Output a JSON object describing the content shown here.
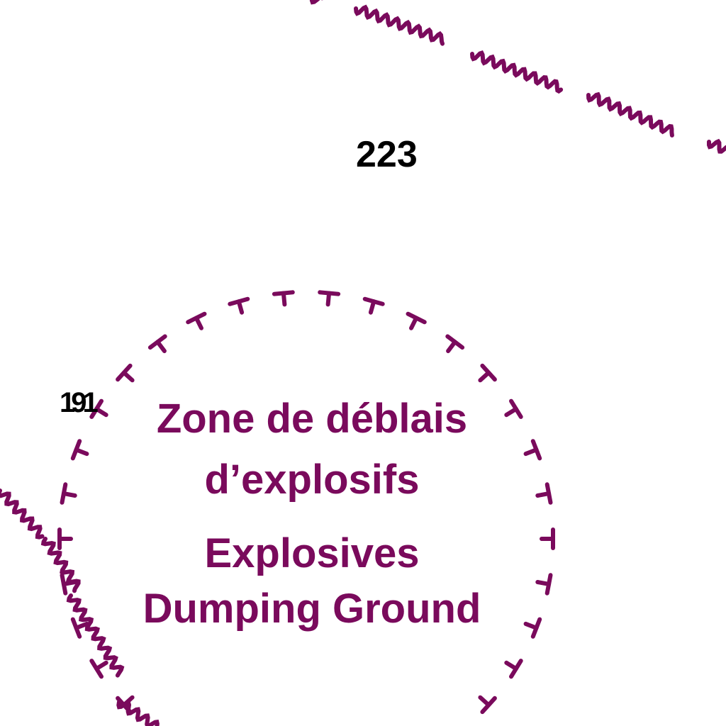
{
  "chart": {
    "soundings": [
      {
        "id": "sounding-223",
        "label": "223"
      },
      {
        "id": "sounding-191",
        "label": "191"
      }
    ],
    "zone_label": {
      "french_line1": "Zone de déblais",
      "french_line2": "d’explosifs",
      "english_line1": "Explosives",
      "english_line2": "Dumping Ground"
    },
    "colors": {
      "magenta": "#7a0a5c",
      "sounding": "#000000",
      "background": "#ffffff"
    },
    "symbols": {
      "boundary_tick": "T-shaped tick (limit of dumping ground)",
      "line_pattern": "wavy line (submarine cable)"
    }
  }
}
